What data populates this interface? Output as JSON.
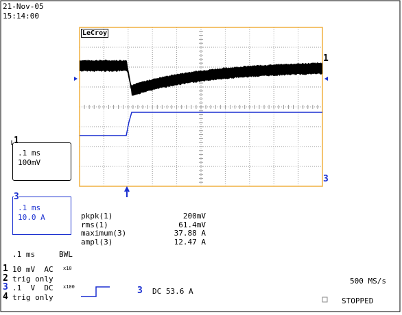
{
  "header": {
    "date": "21-Nov-05",
    "time": "15:14:00"
  },
  "screen": {
    "brand": "LeCroy",
    "trace_marker_1": "1",
    "trace_marker_3": "3"
  },
  "channel_boxes": [
    {
      "label": "1",
      "timebase": ".1 ms",
      "scale": "100mV"
    },
    {
      "label": "3",
      "timebase": ".1 ms",
      "scale": "10.0 A"
    }
  ],
  "measurements": [
    {
      "name": "pkpk(1)",
      "value": "200mV"
    },
    {
      "name": "rms(1)",
      "value": "61.4mV"
    },
    {
      "name": "maximum(3)",
      "value": "37.88 A"
    },
    {
      "name": "ampl(3)",
      "value": "12.47 A"
    }
  ],
  "timebase": {
    "time": ".1 ms",
    "mode": "BWL"
  },
  "channels": [
    {
      "number": "1",
      "setting": "10 mV  AC",
      "probe": "x10"
    },
    {
      "number": "2",
      "setting": "trig only"
    },
    {
      "number": "3",
      "setting": ".1  V  DC",
      "probe": "x100"
    },
    {
      "number": "4",
      "setting": "trig only"
    }
  ],
  "trigger": {
    "channel": "3",
    "setting": "DC 53.6 A"
  },
  "status": {
    "sample_rate": "500 MS/s",
    "state": "STOPPED"
  }
}
